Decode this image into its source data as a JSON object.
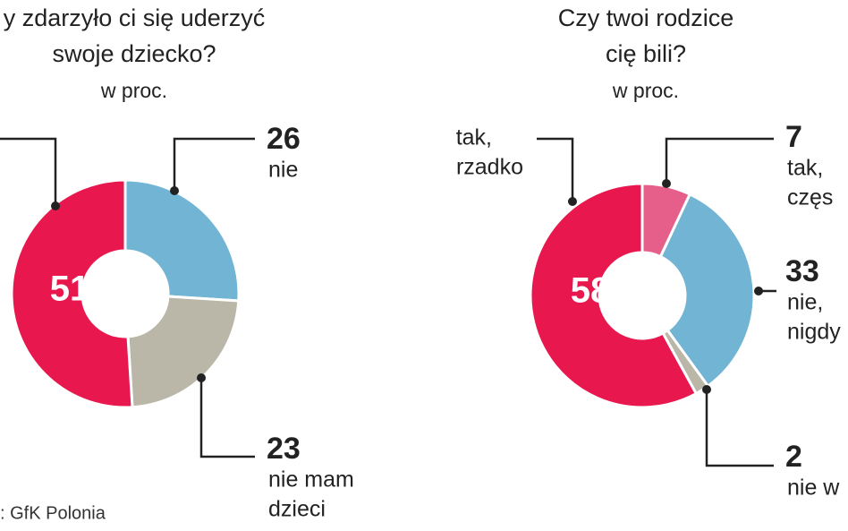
{
  "chart_data": [
    {
      "type": "donut",
      "title": [
        "y zdarzyło ci się uderzyć",
        "swoje dziecko?"
      ],
      "subtitle": "w proc.",
      "categories": [
        [
          "nie"
        ],
        [
          "nie mam",
          "dzieci"
        ],
        null
      ],
      "values": [
        26,
        23,
        51
      ],
      "colors": [
        "#72b4d4",
        "#bab6a8",
        "#e8184f"
      ],
      "source": ": GfK Polonia"
    },
    {
      "type": "donut",
      "title": [
        "Czy twoi rodzice",
        "cię bili?"
      ],
      "subtitle": "w proc.",
      "categories": [
        [
          "tak,",
          "częs"
        ],
        [
          "nie,",
          "nigdy"
        ],
        [
          "nie w"
        ],
        [
          "tak,",
          "rzadko"
        ]
      ],
      "values": [
        7,
        33,
        2,
        58
      ],
      "colors": [
        "#e65f8a",
        "#72b4d4",
        "#bab6a8",
        "#e8184f"
      ]
    }
  ]
}
